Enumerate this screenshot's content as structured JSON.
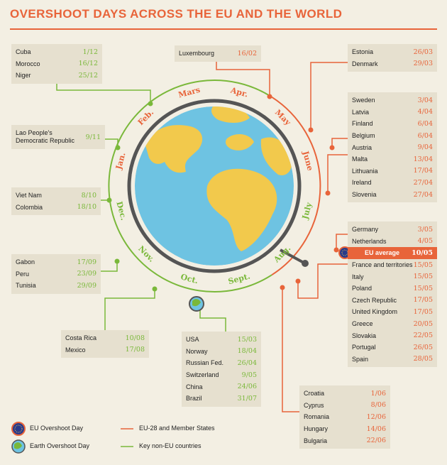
{
  "title": "OVERSHOOT DAYS ACROSS THE EU AND THE WORLD",
  "colors": {
    "eu": "#e8643a",
    "world": "#7ab83a",
    "ocean": "#6ec3e2",
    "land": "#f2c94c",
    "box": "#e6e0cf"
  },
  "months": [
    "Jan.",
    "Feb.",
    "Mars",
    "Apr.",
    "May",
    "June",
    "July",
    "Aug.",
    "Sept.",
    "Oct.",
    "Nov.",
    "Dec."
  ],
  "boxes": {
    "cuba_group": [
      {
        "name": "Cuba",
        "date": "1/12"
      },
      {
        "name": "Morocco",
        "date": "16/12"
      },
      {
        "name": "Niger",
        "date": "25/12"
      }
    ],
    "luxembourg": [
      {
        "name": "Luxembourg",
        "date": "16/02"
      }
    ],
    "estonia_group": [
      {
        "name": "Estonia",
        "date": "26/03"
      },
      {
        "name": "Denmark",
        "date": "29/03"
      }
    ],
    "laos": [
      {
        "name": "Lao People's Democratic Republic",
        "date": "9/11"
      }
    ],
    "sweden_group": [
      {
        "name": "Sweden",
        "date": "3/04"
      },
      {
        "name": "Latvia",
        "date": "4/04"
      },
      {
        "name": "Finland",
        "date": "6/04"
      },
      {
        "name": "Belgium",
        "date": "6/04"
      },
      {
        "name": "Austria",
        "date": "9/04"
      },
      {
        "name": "Malta",
        "date": "13/04"
      },
      {
        "name": "Lithuania",
        "date": "17/04"
      },
      {
        "name": "Ireland",
        "date": "27/04"
      },
      {
        "name": "Slovenia",
        "date": "27/04"
      }
    ],
    "vietnam_group": [
      {
        "name": "Viet Nam",
        "date": "8/10"
      },
      {
        "name": "Colombia",
        "date": "18/10"
      }
    ],
    "may_group": [
      {
        "name": "Germany",
        "date": "3/05"
      },
      {
        "name": "Netherlands",
        "date": "4/05"
      },
      {
        "name": "EU average",
        "date": "10/05"
      },
      {
        "name": "France and territories",
        "date": "15/05"
      },
      {
        "name": "Italy",
        "date": "15/05"
      },
      {
        "name": "Poland",
        "date": "15/05"
      },
      {
        "name": "Czech Republic",
        "date": "17/05"
      },
      {
        "name": "United Kingdom",
        "date": "17/05"
      },
      {
        "name": "Greece",
        "date": "20/05"
      },
      {
        "name": "Slovakia",
        "date": "22/05"
      },
      {
        "name": "Portugal",
        "date": "26/05"
      },
      {
        "name": "Spain",
        "date": "28/05"
      }
    ],
    "gabon_group": [
      {
        "name": "Gabon",
        "date": "17/09"
      },
      {
        "name": "Peru",
        "date": "23/09"
      },
      {
        "name": "Tunisia",
        "date": "29/09"
      }
    ],
    "costarica_group": [
      {
        "name": "Costa Rica",
        "date": "10/08"
      },
      {
        "name": "Mexico",
        "date": "17/08"
      }
    ],
    "usa_group": [
      {
        "name": "USA",
        "date": "15/03"
      },
      {
        "name": "Norway",
        "date": "18/04"
      },
      {
        "name": "Russian Fed.",
        "date": "26/04"
      },
      {
        "name": "Switzerland",
        "date": "9/05"
      },
      {
        "name": "China",
        "date": "24/06"
      },
      {
        "name": "Brazil",
        "date": "31/07"
      }
    ],
    "croatia_group": [
      {
        "name": "Croatia",
        "date": "1/06"
      },
      {
        "name": "Cyprus",
        "date": "8/06"
      },
      {
        "name": "Romania",
        "date": "12/06"
      },
      {
        "name": "Hungary",
        "date": "14/06"
      },
      {
        "name": "Bulgaria",
        "date": "22/06"
      }
    ]
  },
  "legend": {
    "eu_day": "EU Overshoot Day",
    "earth_day": "Earth Overshoot Day",
    "eu_line": "EU-28 and Member States",
    "world_line": "Key non-EU countries"
  }
}
